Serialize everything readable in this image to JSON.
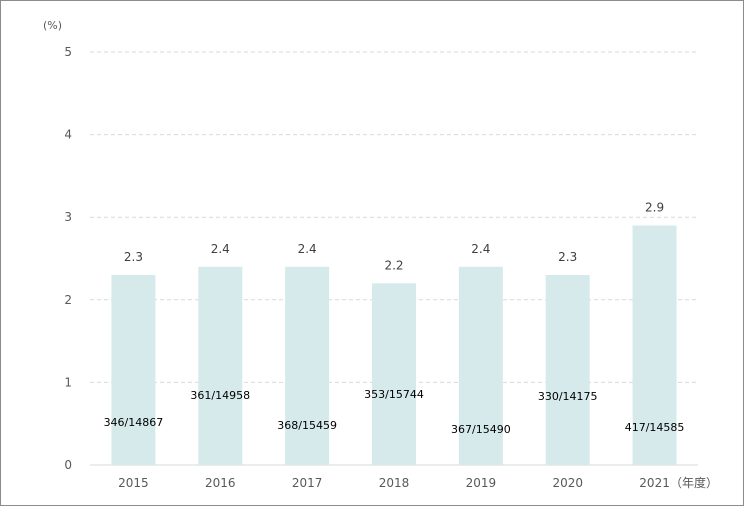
{
  "chart_data": {
    "type": "bar",
    "categories": [
      "2015",
      "2016",
      "2017",
      "2018",
      "2019",
      "2020",
      "2021"
    ],
    "values": [
      2.3,
      2.4,
      2.4,
      2.2,
      2.4,
      2.3,
      2.9
    ],
    "bar_labels": [
      2.3,
      2.4,
      2.4,
      2.2,
      2.4,
      2.3,
      2.9
    ],
    "inner_labels": [
      "346/14867",
      "361/14958",
      "368/15459",
      "353/15744",
      "367/15490",
      "330/14175",
      "417/14585"
    ],
    "y_unit": "(%)",
    "x_unit": "（年度）",
    "ylim": [
      0,
      5
    ],
    "yticks": [
      0,
      1,
      2,
      3,
      4,
      5
    ],
    "grid": true,
    "colors": {
      "bar": "#d6eaec",
      "grid": "#d9d9d9",
      "axis": "#d9d9d9"
    }
  }
}
